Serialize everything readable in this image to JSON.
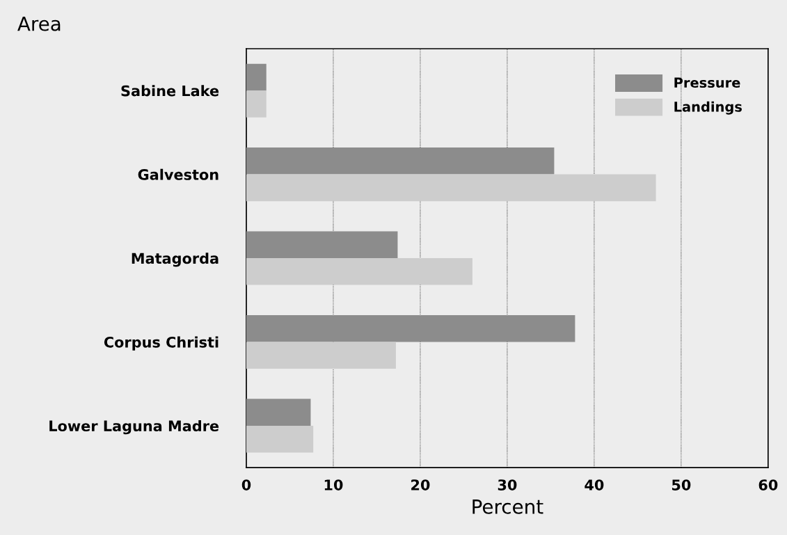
{
  "chart_data": {
    "type": "bar",
    "orientation": "horizontal",
    "ylabel": "Area",
    "xlabel": "Percent",
    "categories": [
      "Sabine Lake",
      "Galveston",
      "Matagorda",
      "Corpus Christi",
      "Lower Laguna Madre"
    ],
    "series": [
      {
        "name": "Pressure",
        "color": "#8c8c8c",
        "values": [
          2.3,
          35.4,
          17.4,
          37.8,
          7.4
        ]
      },
      {
        "name": "Landings",
        "color": "#cdcdcd",
        "values": [
          2.3,
          47.1,
          26.0,
          17.2,
          7.7
        ]
      }
    ],
    "xlim": [
      0,
      60
    ],
    "xticks": [
      0,
      10,
      20,
      30,
      40,
      50,
      60
    ],
    "grid": "x",
    "legend": "top right"
  }
}
